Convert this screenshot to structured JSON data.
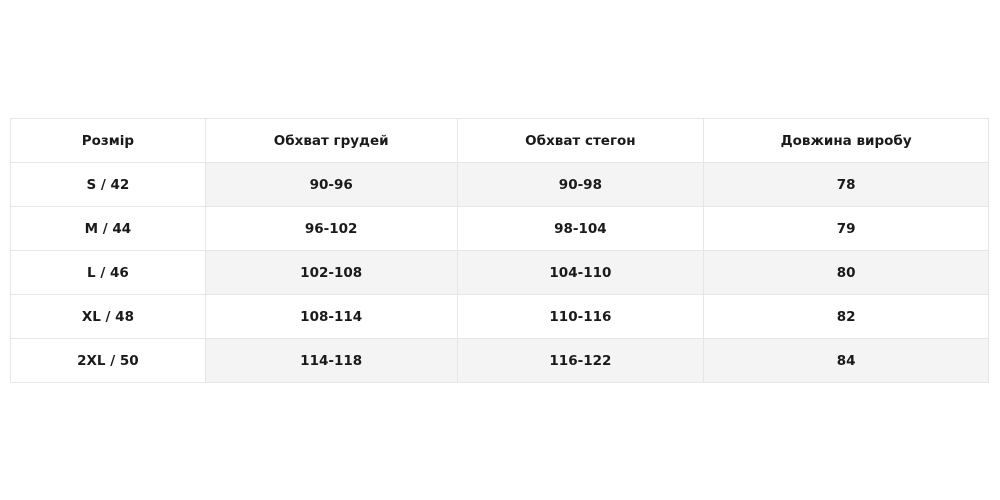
{
  "size_table": {
    "headers": [
      "Розмір",
      "Обхват грудей",
      "Обхват стегон",
      "Довжина виробу"
    ],
    "rows": [
      [
        "S / 42",
        "90-96",
        "90-98",
        "78"
      ],
      [
        "M / 44",
        "96-102",
        "98-104",
        "79"
      ],
      [
        "L / 46",
        "102-108",
        "104-110",
        "80"
      ],
      [
        "XL / 48",
        "108-114",
        "110-116",
        "82"
      ],
      [
        "2XL / 50",
        "114-118",
        "116-122",
        "84"
      ]
    ],
    "colors": {
      "border": "#e6e6e6",
      "shaded_row": "#f4f4f4",
      "text": "#1a1a1a"
    }
  }
}
